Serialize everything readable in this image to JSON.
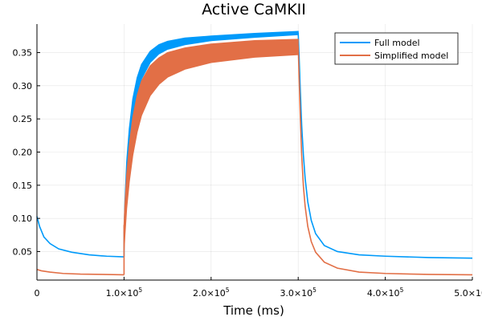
{
  "chart_data": {
    "type": "line",
    "title": "Active CaMKII",
    "xlabel": "Time (ms)",
    "ylabel": "",
    "xlim": [
      0,
      500000
    ],
    "ylim": [
      0.007,
      0.393
    ],
    "grid": true,
    "legend_position": "top-right",
    "x_ticks": [
      {
        "value": 0,
        "mantissa": "0",
        "exp": ""
      },
      {
        "value": 100000,
        "mantissa": "1.0×10",
        "exp": "5"
      },
      {
        "value": 200000,
        "mantissa": "2.0×10",
        "exp": "5"
      },
      {
        "value": 300000,
        "mantissa": "3.0×10",
        "exp": "5"
      },
      {
        "value": 400000,
        "mantissa": "4.0×10",
        "exp": "5"
      },
      {
        "value": 500000,
        "mantissa": "5.0×10",
        "exp": "5"
      }
    ],
    "y_ticks": [
      {
        "value": 0.05,
        "label": "0.05"
      },
      {
        "value": 0.1,
        "label": "0.10"
      },
      {
        "value": 0.15,
        "label": "0.15"
      },
      {
        "value": 0.2,
        "label": "0.20"
      },
      {
        "value": 0.25,
        "label": "0.25"
      },
      {
        "value": 0.3,
        "label": "0.30"
      },
      {
        "value": 0.35,
        "label": "0.35"
      }
    ],
    "series": [
      {
        "name": "Full model",
        "color": "#009AFA",
        "points": [
          [
            0,
            0.103
          ],
          [
            3000,
            0.088
          ],
          [
            8000,
            0.072
          ],
          [
            15000,
            0.062
          ],
          [
            25000,
            0.054
          ],
          [
            40000,
            0.049
          ],
          [
            60000,
            0.045
          ],
          [
            80000,
            0.043
          ],
          [
            99999,
            0.042
          ]
        ],
        "band_lower": [
          [
            100000,
            0.06
          ],
          [
            101000,
            0.1
          ],
          [
            103000,
            0.155
          ],
          [
            106000,
            0.205
          ],
          [
            110000,
            0.25
          ],
          [
            115000,
            0.285
          ],
          [
            120000,
            0.31
          ],
          [
            130000,
            0.335
          ],
          [
            140000,
            0.348
          ],
          [
            150000,
            0.355
          ],
          [
            170000,
            0.362
          ],
          [
            200000,
            0.368
          ],
          [
            250000,
            0.373
          ],
          [
            299999,
            0.377
          ]
        ],
        "band_upper": [
          [
            100000,
            0.08
          ],
          [
            101000,
            0.125
          ],
          [
            103000,
            0.185
          ],
          [
            106000,
            0.235
          ],
          [
            110000,
            0.28
          ],
          [
            115000,
            0.312
          ],
          [
            120000,
            0.332
          ],
          [
            130000,
            0.352
          ],
          [
            140000,
            0.362
          ],
          [
            150000,
            0.367
          ],
          [
            170000,
            0.372
          ],
          [
            200000,
            0.375
          ],
          [
            250000,
            0.379
          ],
          [
            299999,
            0.382
          ]
        ],
        "decay": [
          [
            300000,
            0.38
          ],
          [
            301000,
            0.345
          ],
          [
            302500,
            0.29
          ],
          [
            304000,
            0.24
          ],
          [
            306000,
            0.195
          ],
          [
            308000,
            0.16
          ],
          [
            311000,
            0.125
          ],
          [
            315000,
            0.097
          ],
          [
            320000,
            0.077
          ],
          [
            330000,
            0.059
          ],
          [
            345000,
            0.05
          ],
          [
            370000,
            0.045
          ],
          [
            400000,
            0.043
          ],
          [
            450000,
            0.041
          ],
          [
            500000,
            0.04
          ]
        ]
      },
      {
        "name": "Simplified model",
        "color": "#E26F46",
        "points": [
          [
            0,
            0.023
          ],
          [
            5000,
            0.021
          ],
          [
            15000,
            0.019
          ],
          [
            30000,
            0.017
          ],
          [
            50000,
            0.016
          ],
          [
            75000,
            0.0155
          ],
          [
            99999,
            0.015
          ]
        ],
        "band_lower": [
          [
            100000,
            0.05
          ],
          [
            101000,
            0.075
          ],
          [
            103000,
            0.115
          ],
          [
            106000,
            0.155
          ],
          [
            110000,
            0.195
          ],
          [
            115000,
            0.23
          ],
          [
            120000,
            0.255
          ],
          [
            130000,
            0.285
          ],
          [
            140000,
            0.302
          ],
          [
            150000,
            0.313
          ],
          [
            170000,
            0.325
          ],
          [
            200000,
            0.335
          ],
          [
            250000,
            0.343
          ],
          [
            299999,
            0.347
          ]
        ],
        "band_upper": [
          [
            100000,
            0.09
          ],
          [
            101000,
            0.12
          ],
          [
            103000,
            0.165
          ],
          [
            106000,
            0.21
          ],
          [
            110000,
            0.252
          ],
          [
            115000,
            0.285
          ],
          [
            120000,
            0.307
          ],
          [
            130000,
            0.33
          ],
          [
            140000,
            0.342
          ],
          [
            150000,
            0.35
          ],
          [
            170000,
            0.357
          ],
          [
            200000,
            0.363
          ],
          [
            250000,
            0.368
          ],
          [
            299999,
            0.37
          ]
        ],
        "decay": [
          [
            300000,
            0.36
          ],
          [
            301000,
            0.315
          ],
          [
            302500,
            0.25
          ],
          [
            304000,
            0.195
          ],
          [
            306000,
            0.148
          ],
          [
            308000,
            0.118
          ],
          [
            311000,
            0.088
          ],
          [
            315000,
            0.065
          ],
          [
            320000,
            0.049
          ],
          [
            330000,
            0.034
          ],
          [
            345000,
            0.025
          ],
          [
            370000,
            0.019
          ],
          [
            400000,
            0.017
          ],
          [
            450000,
            0.0155
          ],
          [
            500000,
            0.015
          ]
        ]
      }
    ]
  }
}
